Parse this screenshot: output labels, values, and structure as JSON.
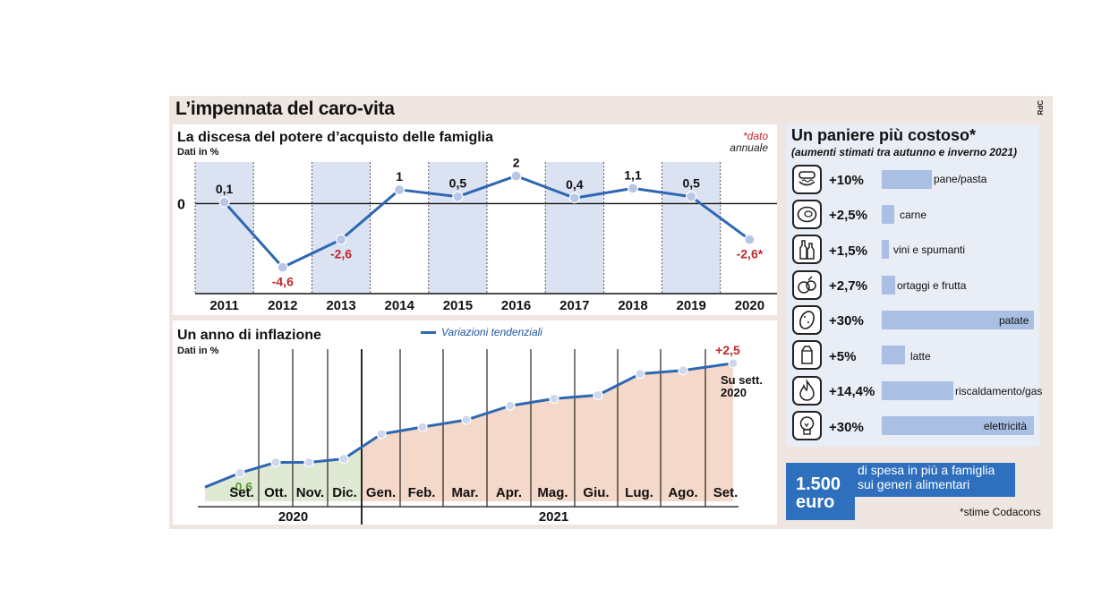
{
  "header": {
    "title": "L’impennata del caro-vita",
    "credit": "RdC"
  },
  "chart1": {
    "title": "La discesa del potere d’acquisto delle famiglia",
    "unit": "Dati in %",
    "note_star": "*dato",
    "note_text": "annuale",
    "zero_label": "0"
  },
  "chart2": {
    "title": "Un anno di inflazione",
    "unit": "Dati in %",
    "legend": "Variazioni tendenziali",
    "end_label_line1": "Su sett.",
    "end_label_line2": "2020"
  },
  "chart_data": [
    {
      "type": "line",
      "title": "La discesa del potere d’acquisto delle famiglia",
      "ylabel": "Dati in %",
      "x": [
        "2011",
        "2012",
        "2013",
        "2014",
        "2015",
        "2016",
        "2017",
        "2018",
        "2019",
        "2020"
      ],
      "values": [
        0.1,
        -4.6,
        -2.6,
        1,
        0.5,
        2,
        0.4,
        1.1,
        0.5,
        -2.6
      ],
      "value_labels": [
        "0,1",
        "-4,6",
        "-2,6",
        "1",
        "0,5",
        "2",
        "0,4",
        "1,1",
        "0,5",
        "-2,6*"
      ],
      "ylim": [
        -6.5,
        3.0
      ],
      "grid": false,
      "colors": {
        "line": "#2e67b2",
        "marker": "#b9c6e6",
        "negative": "#c0282d",
        "band": "#cfd8ee"
      }
    },
    {
      "type": "area",
      "title": "Un anno di inflazione",
      "ylabel": "Dati in %",
      "series": [
        {
          "name": "Variazioni tendenziali"
        }
      ],
      "x": [
        "Set.",
        "Ott.",
        "Nov.",
        "Dic.",
        "Gen.",
        "Feb.",
        "Mar.",
        "Apr.",
        "Mag.",
        "Giu.",
        "Lug.",
        "Ago.",
        "Set."
      ],
      "x_groups": [
        {
          "label": "2020",
          "count": 4
        },
        {
          "label": "2021",
          "count": 9
        }
      ],
      "values": [
        -0.6,
        -0.3,
        -0.3,
        -0.2,
        0.5,
        0.7,
        0.9,
        1.3,
        1.5,
        1.6,
        2.2,
        2.3,
        2.5
      ],
      "start_value": -1.0,
      "value_labels": {
        "first": "-0,6",
        "last": "+2,5"
      },
      "ylim": [
        -1.4,
        2.9
      ],
      "grid": false,
      "colors": {
        "line": "#2e67b2",
        "marker": "#cdd8ee",
        "fill_2020": "#dfe9d3",
        "fill_2021": "#f4d8c9",
        "positive": "#c0282d",
        "negative": "#5a9a3a"
      }
    },
    {
      "type": "bar",
      "title": "Un paniere più costoso*",
      "subtitle": "(aumenti stimati tra autunno e inverno 2021)",
      "categories": [
        "pane/pasta",
        "carne",
        "vini e spumanti",
        "ortaggi e frutta",
        "patate",
        "latte",
        "riscaldamento/gas",
        "elettricità"
      ],
      "values": [
        10,
        2.5,
        1.5,
        2.7,
        30,
        5,
        14.4,
        30
      ],
      "value_labels": [
        "+10%",
        "+2,5%",
        "+1,5%",
        "+2,7%",
        "+30%",
        "+5%",
        "+14,4%",
        "+30%"
      ],
      "icons": [
        "bread-pasta-icon",
        "meat-icon",
        "wine-bottles-icon",
        "vegetables-fruit-icon",
        "potato-icon",
        "milk-carton-icon",
        "gas-flame-icon",
        "light-bulb-icon"
      ],
      "colors": {
        "bar": "#a9bfe4"
      }
    }
  ],
  "panier": {
    "title": "Un paniere più costoso*",
    "subtitle": "(aumenti stimati tra autunno e inverno 2021)",
    "callout_amount_line1": "1.500",
    "callout_amount_line2": "euro",
    "callout_text": "di spesa in più a famiglia sui generi alimentari",
    "source": "*stime Codacons"
  }
}
